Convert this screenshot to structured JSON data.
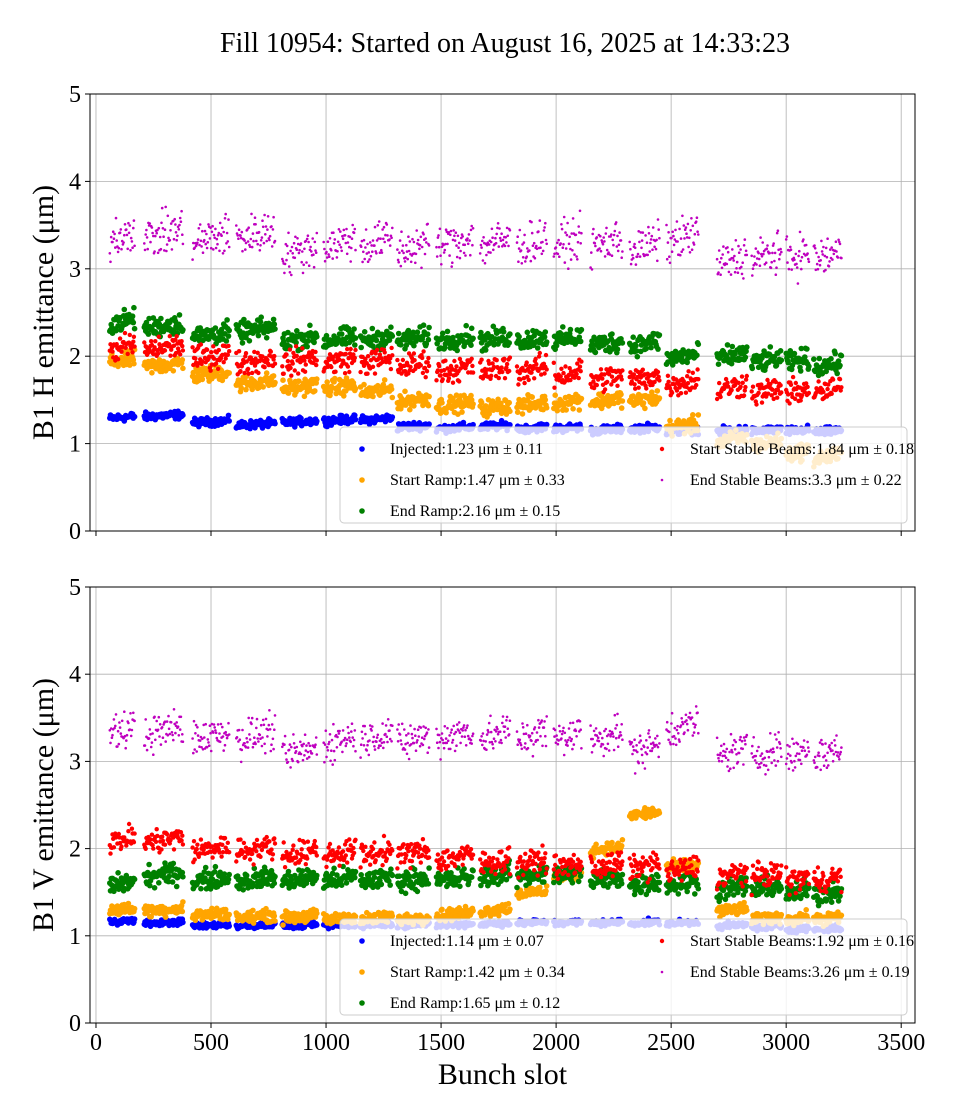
{
  "title": "Fill 10954: Started on August 16, 2025 at 14:33:23",
  "chart_data": [
    {
      "type": "scatter",
      "ylabel": "B1 H emittance (μm)",
      "xlabel": "",
      "xlim": [
        -26,
        3560
      ],
      "ylim": [
        0,
        5
      ],
      "xticks": [
        0,
        500,
        1000,
        1500,
        2000,
        2500,
        3000,
        3500
      ],
      "yticks": [
        0,
        1,
        2,
        3,
        4,
        5
      ],
      "grid": true,
      "legend_position": "bottom-right",
      "trains": [
        [
          60,
          170
        ],
        [
          210,
          380
        ],
        [
          420,
          580
        ],
        [
          610,
          780
        ],
        [
          810,
          960
        ],
        [
          990,
          1130
        ],
        [
          1150,
          1290
        ],
        [
          1310,
          1450
        ],
        [
          1480,
          1640
        ],
        [
          1670,
          1800
        ],
        [
          1830,
          1960
        ],
        [
          1990,
          2110
        ],
        [
          2150,
          2290
        ],
        [
          2320,
          2450
        ],
        [
          2480,
          2620
        ],
        [
          2700,
          2830
        ],
        [
          2850,
          2980
        ],
        [
          3000,
          3100
        ],
        [
          3120,
          3240
        ]
      ],
      "series": [
        {
          "name": "Injected",
          "legend": "Injected:1.23 μm ± 0.11",
          "color": "#0000ff",
          "spread": 0.04,
          "train_means": [
            1.3,
            1.32,
            1.25,
            1.22,
            1.25,
            1.27,
            1.28,
            1.2,
            1.18,
            1.2,
            1.18,
            1.18,
            1.16,
            1.18,
            1.15,
            1.15,
            1.15,
            1.15,
            1.14
          ]
        },
        {
          "name": "Start Ramp",
          "legend": "Start Ramp:1.47 μm ± 0.33",
          "color": "#ffa500",
          "spread": 0.08,
          "train_means": [
            1.95,
            1.9,
            1.8,
            1.7,
            1.65,
            1.65,
            1.6,
            1.5,
            1.45,
            1.42,
            1.45,
            1.48,
            1.5,
            1.5,
            1.2,
            1.05,
            1.0,
            0.9,
            0.85
          ]
        },
        {
          "name": "End Ramp",
          "legend": "End Ramp:2.16 μm ± 0.15",
          "color": "#008000",
          "spread": 0.1,
          "train_means": [
            2.4,
            2.35,
            2.25,
            2.3,
            2.2,
            2.2,
            2.2,
            2.2,
            2.2,
            2.2,
            2.2,
            2.2,
            2.15,
            2.15,
            2.0,
            2.0,
            1.95,
            1.95,
            1.9
          ]
        },
        {
          "name": "Start Stable Beams",
          "legend": "Start Stable Beams:1.84 μm ± 0.18",
          "color": "#ff0000",
          "spread": 0.12,
          "train_means": [
            2.1,
            2.1,
            2.0,
            1.95,
            1.95,
            1.95,
            1.95,
            1.9,
            1.85,
            1.85,
            1.85,
            1.8,
            1.75,
            1.75,
            1.7,
            1.65,
            1.6,
            1.6,
            1.6
          ]
        },
        {
          "name": "End Stable Beams",
          "legend": "End Stable Beams:3.3 μm ± 0.22",
          "color": "#bf00bf",
          "spread": 0.2,
          "train_means": [
            3.4,
            3.4,
            3.35,
            3.4,
            3.2,
            3.3,
            3.3,
            3.25,
            3.3,
            3.3,
            3.3,
            3.3,
            3.3,
            3.25,
            3.35,
            3.1,
            3.15,
            3.15,
            3.15
          ]
        }
      ]
    },
    {
      "type": "scatter",
      "ylabel": "B1 V emittance (μm)",
      "xlabel": "Bunch slot",
      "xlim": [
        -26,
        3560
      ],
      "ylim": [
        0,
        5
      ],
      "xticks": [
        0,
        500,
        1000,
        1500,
        2000,
        2500,
        3000,
        3500
      ],
      "yticks": [
        0,
        1,
        2,
        3,
        4,
        5
      ],
      "grid": true,
      "legend_position": "bottom-right",
      "trains": [
        [
          60,
          170
        ],
        [
          210,
          380
        ],
        [
          420,
          580
        ],
        [
          610,
          780
        ],
        [
          810,
          960
        ],
        [
          990,
          1130
        ],
        [
          1150,
          1290
        ],
        [
          1310,
          1450
        ],
        [
          1480,
          1640
        ],
        [
          1670,
          1800
        ],
        [
          1830,
          1960
        ],
        [
          1990,
          2110
        ],
        [
          2150,
          2290
        ],
        [
          2320,
          2450
        ],
        [
          2480,
          2620
        ],
        [
          2700,
          2830
        ],
        [
          2850,
          2980
        ],
        [
          3000,
          3100
        ],
        [
          3120,
          3240
        ]
      ],
      "series": [
        {
          "name": "Injected",
          "legend": "Injected:1.14 μm ± 0.07",
          "color": "#0000ff",
          "spread": 0.03,
          "train_means": [
            1.17,
            1.15,
            1.12,
            1.12,
            1.12,
            1.12,
            1.13,
            1.13,
            1.13,
            1.14,
            1.15,
            1.15,
            1.15,
            1.15,
            1.15,
            1.12,
            1.1,
            1.08,
            1.08
          ]
        },
        {
          "name": "Start Ramp",
          "legend": "Start Ramp:1.42 μm ± 0.34",
          "color": "#ffa500",
          "spread": 0.06,
          "train_means": [
            1.3,
            1.3,
            1.25,
            1.22,
            1.22,
            1.2,
            1.2,
            1.2,
            1.25,
            1.3,
            1.5,
            1.7,
            2.0,
            2.4,
            1.8,
            1.3,
            1.2,
            1.2,
            1.2
          ]
        },
        {
          "name": "End Ramp",
          "legend": "End Ramp:1.65 μm ± 0.12",
          "color": "#008000",
          "spread": 0.1,
          "train_means": [
            1.6,
            1.7,
            1.65,
            1.65,
            1.65,
            1.65,
            1.65,
            1.65,
            1.65,
            1.7,
            1.7,
            1.7,
            1.65,
            1.6,
            1.6,
            1.55,
            1.55,
            1.5,
            1.5
          ]
        },
        {
          "name": "Start Stable Beams",
          "legend": "Start Stable Beams:1.92 μm ± 0.16",
          "color": "#ff0000",
          "spread": 0.12,
          "train_means": [
            2.1,
            2.1,
            2.0,
            2.0,
            1.95,
            1.95,
            1.95,
            1.95,
            1.9,
            1.85,
            1.85,
            1.8,
            1.8,
            1.8,
            1.75,
            1.7,
            1.7,
            1.65,
            1.65
          ]
        },
        {
          "name": "End Stable Beams",
          "legend": "End Stable Beams:3.26 μm ± 0.19",
          "color": "#bf00bf",
          "spread": 0.18,
          "train_means": [
            3.35,
            3.35,
            3.3,
            3.3,
            3.1,
            3.25,
            3.3,
            3.25,
            3.3,
            3.3,
            3.3,
            3.3,
            3.3,
            3.15,
            3.4,
            3.1,
            3.1,
            3.1,
            3.1
          ]
        }
      ]
    }
  ]
}
